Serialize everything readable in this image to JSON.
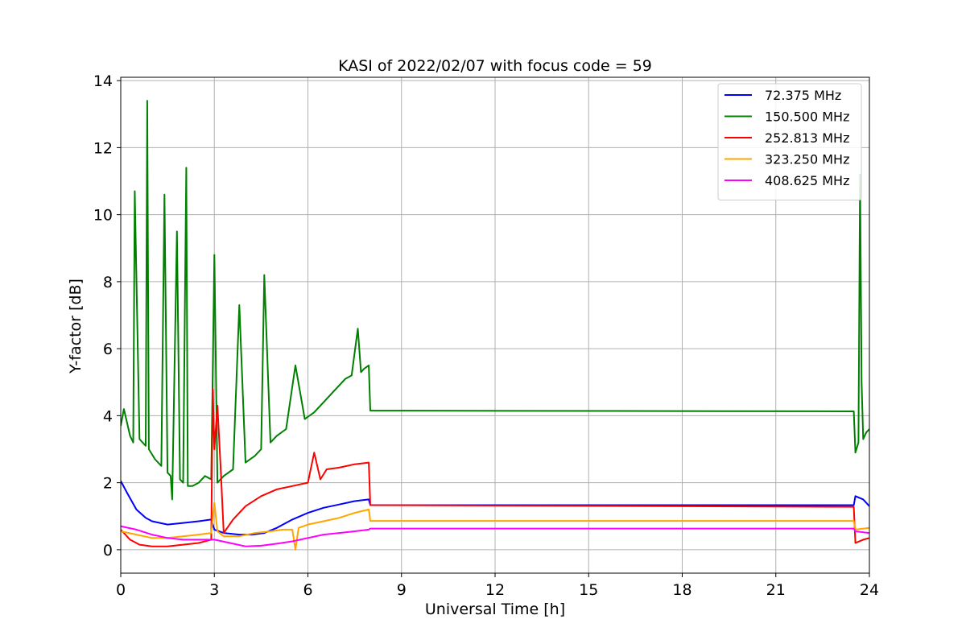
{
  "chart_data": {
    "type": "line",
    "title": "KASI of 2022/02/07 with focus code = 59",
    "xlabel": "Universal Time [h]",
    "ylabel": "Y-factor [dB]",
    "xlim": [
      0,
      24
    ],
    "ylim": [
      -0.7,
      14.1
    ],
    "xticks": [
      0,
      3,
      6,
      9,
      12,
      15,
      18,
      21,
      24
    ],
    "yticks": [
      0,
      2,
      4,
      6,
      8,
      10,
      12,
      14
    ],
    "grid": true,
    "legend_position": "top-right",
    "series": [
      {
        "name": " 72.375 MHz",
        "color": "#0000ff",
        "x": [
          0,
          0.2,
          0.5,
          0.8,
          1.0,
          1.5,
          2.0,
          2.5,
          2.9,
          3.0,
          3.3,
          3.8,
          4.2,
          4.6,
          5.0,
          5.5,
          6.0,
          6.5,
          7.0,
          7.5,
          7.95,
          8.0,
          23.5,
          23.55,
          23.8,
          24.0
        ],
        "y": [
          2.05,
          1.7,
          1.2,
          0.95,
          0.85,
          0.75,
          0.8,
          0.85,
          0.9,
          0.6,
          0.5,
          0.45,
          0.45,
          0.5,
          0.65,
          0.9,
          1.1,
          1.25,
          1.35,
          1.45,
          1.5,
          1.33,
          1.33,
          1.6,
          1.5,
          1.3
        ]
      },
      {
        "name": "150.500 MHz",
        "color": "#008000",
        "x": [
          0,
          0.1,
          0.3,
          0.4,
          0.45,
          0.6,
          0.8,
          0.85,
          0.9,
          1.1,
          1.3,
          1.4,
          1.5,
          1.6,
          1.65,
          1.8,
          1.9,
          2.0,
          2.1,
          2.15,
          2.3,
          2.5,
          2.7,
          2.9,
          3.0,
          3.1,
          3.3,
          3.6,
          3.8,
          4.0,
          4.3,
          4.5,
          4.6,
          4.8,
          5.0,
          5.3,
          5.6,
          5.9,
          6.2,
          6.4,
          6.6,
          6.8,
          7.0,
          7.2,
          7.4,
          7.6,
          7.7,
          7.8,
          7.95,
          8.0,
          23.5,
          23.55,
          23.65,
          23.7,
          23.75,
          23.8,
          23.9,
          24.0
        ],
        "y": [
          3.7,
          4.2,
          3.4,
          3.2,
          10.7,
          3.3,
          3.1,
          13.4,
          3.0,
          2.7,
          2.5,
          10.6,
          2.3,
          2.2,
          1.5,
          9.5,
          2.1,
          2.0,
          11.4,
          1.9,
          1.9,
          2.0,
          2.2,
          2.1,
          8.8,
          2.0,
          2.2,
          2.4,
          7.3,
          2.6,
          2.8,
          3.0,
          8.2,
          3.2,
          3.4,
          3.6,
          5.5,
          3.9,
          4.1,
          4.3,
          4.5,
          4.7,
          4.9,
          5.1,
          5.2,
          6.6,
          5.3,
          5.4,
          5.5,
          4.15,
          4.13,
          2.9,
          3.2,
          11.2,
          5.0,
          3.3,
          3.5,
          3.6
        ]
      },
      {
        "name": "252.813 MHz",
        "color": "#ff0000",
        "x": [
          0,
          0.3,
          0.6,
          1.0,
          1.5,
          2.0,
          2.5,
          2.9,
          2.95,
          3.0,
          3.1,
          3.2,
          3.3,
          3.6,
          4.0,
          4.5,
          5.0,
          5.5,
          6.0,
          6.2,
          6.4,
          6.6,
          7.0,
          7.5,
          7.95,
          8.0,
          23.5,
          23.55,
          23.8,
          24.0
        ],
        "y": [
          0.6,
          0.3,
          0.15,
          0.1,
          0.1,
          0.15,
          0.2,
          0.3,
          4.8,
          3.0,
          4.3,
          2.5,
          0.5,
          0.9,
          1.3,
          1.6,
          1.8,
          1.9,
          2.0,
          2.9,
          2.1,
          2.4,
          2.45,
          2.55,
          2.6,
          1.33,
          1.28,
          0.2,
          0.3,
          0.35
        ]
      },
      {
        "name": "323.250 MHz",
        "color": "#ffa500",
        "x": [
          0,
          0.5,
          1.0,
          1.5,
          2.0,
          2.5,
          2.9,
          3.0,
          3.1,
          3.3,
          3.8,
          4.3,
          4.8,
          5.2,
          5.5,
          5.6,
          5.7,
          6.0,
          6.5,
          7.0,
          7.5,
          7.95,
          8.0,
          23.5,
          23.55,
          24.0
        ],
        "y": [
          0.55,
          0.45,
          0.35,
          0.35,
          0.4,
          0.45,
          0.5,
          1.4,
          0.55,
          0.4,
          0.4,
          0.5,
          0.55,
          0.6,
          0.6,
          0.0,
          0.65,
          0.75,
          0.85,
          0.95,
          1.1,
          1.2,
          0.86,
          0.86,
          0.6,
          0.65
        ]
      },
      {
        "name": "408.625 MHz",
        "color": "#ff00ff",
        "x": [
          0,
          0.5,
          1.0,
          1.5,
          2.0,
          2.5,
          3.0,
          3.5,
          4.0,
          4.5,
          5.0,
          5.5,
          6.0,
          6.5,
          7.0,
          7.5,
          7.95,
          8.0,
          23.5,
          23.55,
          24.0
        ],
        "y": [
          0.7,
          0.6,
          0.45,
          0.35,
          0.3,
          0.3,
          0.3,
          0.2,
          0.1,
          0.12,
          0.18,
          0.25,
          0.35,
          0.45,
          0.5,
          0.55,
          0.6,
          0.63,
          0.63,
          0.55,
          0.5
        ]
      }
    ]
  }
}
